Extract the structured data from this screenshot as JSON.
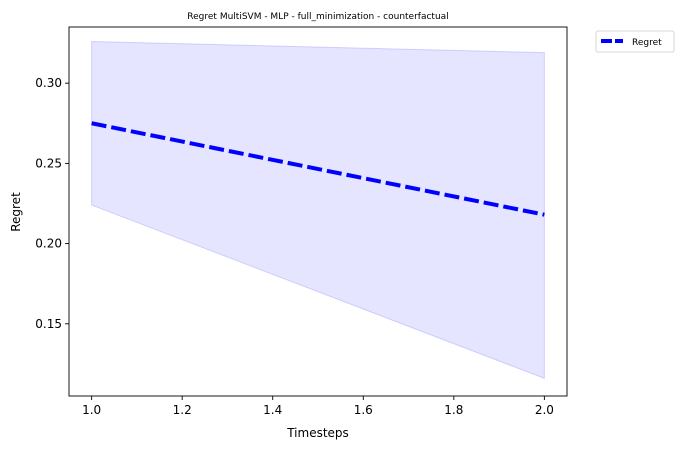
{
  "chart_data": {
    "type": "line",
    "title": "Regret MultiSVM - MLP - full_minimization - counterfactual",
    "xlabel": "Timesteps",
    "ylabel": "Regret",
    "xlim": [
      0.95,
      2.05
    ],
    "ylim": [
      0.105,
      0.335
    ],
    "x_ticks": [
      1.0,
      1.2,
      1.4,
      1.6,
      1.8,
      2.0
    ],
    "x_tick_labels": [
      "1.0",
      "1.2",
      "1.4",
      "1.6",
      "1.8",
      "2.0"
    ],
    "y_ticks": [
      0.15,
      0.2,
      0.25,
      0.3
    ],
    "y_tick_labels": [
      "0.15",
      "0.20",
      "0.25",
      "0.30"
    ],
    "grid": false,
    "legend_position": "outside-top-right",
    "series": [
      {
        "name": "Regret",
        "x": [
          1.0,
          2.0
        ],
        "y": [
          0.275,
          0.218
        ],
        "lower": [
          0.224,
          0.116
        ],
        "upper": [
          0.326,
          0.319
        ],
        "color": "#0000ff",
        "band_color": "#0000ff",
        "line_style": "dashed"
      }
    ]
  }
}
